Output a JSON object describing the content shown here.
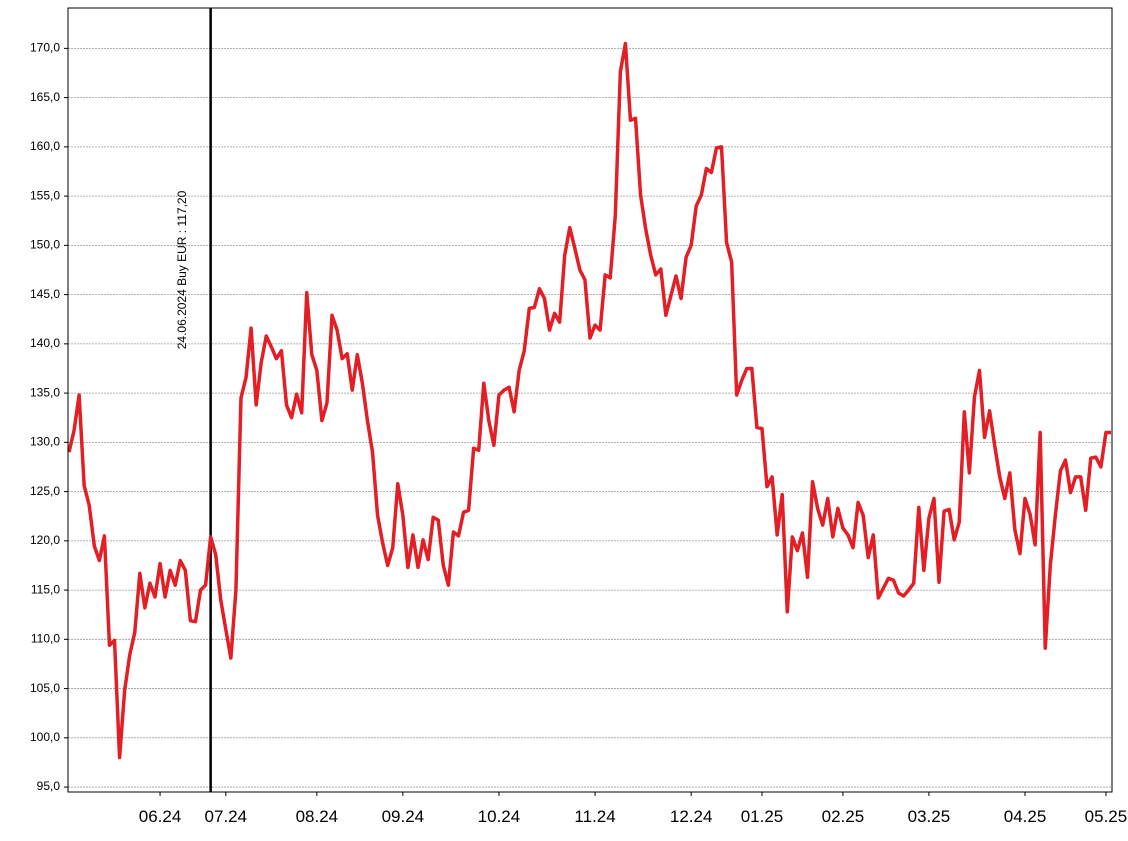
{
  "chart_data": {
    "type": "line",
    "annotation": "24.06.2024 Buy EUR : 117,20",
    "color": "#e31e24",
    "grid": true,
    "ylim": [
      94.5,
      174.1
    ],
    "yticks": [
      {
        "value": 95,
        "label": "95,0"
      },
      {
        "value": 100,
        "label": "100,0"
      },
      {
        "value": 105,
        "label": "105,0"
      },
      {
        "value": 110,
        "label": "110,0"
      },
      {
        "value": 115,
        "label": "115,0"
      },
      {
        "value": 120,
        "label": "120,0"
      },
      {
        "value": 125,
        "label": "125,0"
      },
      {
        "value": 130,
        "label": "130,0"
      },
      {
        "value": 135,
        "label": "135,0"
      },
      {
        "value": 140,
        "label": "140,0"
      },
      {
        "value": 145,
        "label": "145,0"
      },
      {
        "value": 150,
        "label": "150,0"
      },
      {
        "value": 155,
        "label": "155,0"
      },
      {
        "value": 160,
        "label": "160,0"
      },
      {
        "value": 165,
        "label": "165,0"
      },
      {
        "value": 170,
        "label": "170,0"
      }
    ],
    "categories": [
      null,
      null,
      null,
      null,
      null,
      null,
      null,
      null,
      null,
      null,
      null,
      null,
      null,
      null,
      null,
      null,
      null,
      null,
      "06.24",
      null,
      null,
      null,
      null,
      null,
      null,
      null,
      null,
      null,
      null,
      null,
      null,
      "07.24",
      null,
      null,
      null,
      null,
      null,
      null,
      null,
      null,
      null,
      null,
      null,
      null,
      null,
      null,
      null,
      null,
      null,
      "08.24",
      null,
      null,
      null,
      null,
      null,
      null,
      null,
      null,
      null,
      null,
      null,
      null,
      null,
      null,
      null,
      null,
      "09.24",
      null,
      null,
      null,
      null,
      null,
      null,
      null,
      null,
      null,
      null,
      null,
      null,
      null,
      null,
      null,
      null,
      null,
      null,
      "10.24",
      null,
      null,
      null,
      null,
      null,
      null,
      null,
      null,
      null,
      null,
      null,
      null,
      null,
      null,
      null,
      null,
      null,
      null,
      "11.24",
      null,
      null,
      null,
      null,
      null,
      null,
      null,
      null,
      null,
      null,
      null,
      null,
      null,
      null,
      null,
      null,
      null,
      null,
      "12.24",
      null,
      null,
      null,
      null,
      null,
      null,
      null,
      null,
      null,
      null,
      null,
      null,
      null,
      "01.25",
      null,
      null,
      null,
      null,
      null,
      null,
      null,
      null,
      null,
      null,
      null,
      null,
      null,
      null,
      null,
      "02.25",
      null,
      null,
      null,
      null,
      null,
      null,
      null,
      null,
      null,
      null,
      null,
      null,
      null,
      null,
      null,
      null,
      "03.25",
      null,
      null,
      null,
      null,
      null,
      null,
      null,
      null,
      null,
      null,
      null,
      null,
      null,
      null,
      null,
      null,
      null,
      null,
      "04.25",
      null,
      null,
      null,
      null,
      null,
      null,
      null,
      null,
      null,
      null,
      null,
      null,
      null,
      null,
      null,
      "05.25",
      null
    ],
    "values": [
      129.0,
      131.2,
      134.8,
      125.6,
      123.6,
      119.5,
      118.0,
      120.5,
      109.4,
      109.9,
      98.0,
      104.8,
      108.4,
      110.7,
      116.7,
      113.2,
      115.7,
      114.3,
      117.7,
      114.3,
      117.0,
      115.5,
      118.0,
      117.0,
      111.9,
      111.8,
      115.0,
      115.5,
      120.4,
      118.6,
      114.0,
      111.0,
      108.1,
      115.0,
      134.5,
      136.6,
      141.6,
      133.8,
      138.1,
      140.8,
      139.7,
      138.5,
      139.3,
      133.8,
      132.5,
      134.9,
      133.0,
      145.2,
      138.9,
      137.3,
      132.2,
      134.0,
      142.9,
      141.4,
      138.5,
      139.0,
      135.3,
      138.9,
      136.0,
      132.2,
      129.0,
      122.6,
      119.8,
      117.5,
      119.3,
      125.8,
      122.6,
      117.3,
      120.6,
      117.3,
      120.1,
      118.1,
      122.4,
      122.1,
      117.5,
      115.5,
      120.9,
      120.5,
      122.9,
      123.1,
      129.4,
      129.2,
      136.0,
      132.2,
      129.7,
      134.8,
      135.3,
      135.6,
      133.1,
      137.3,
      139.3,
      143.6,
      143.7,
      145.6,
      144.6,
      141.4,
      143.1,
      142.2,
      149.0,
      151.8,
      149.7,
      147.5,
      146.5,
      140.6,
      141.9,
      141.4,
      147.0,
      146.7,
      153.0,
      167.6,
      170.5,
      162.7,
      162.9,
      155.1,
      151.7,
      149.0,
      147.0,
      147.6,
      142.9,
      144.9,
      146.9,
      144.6,
      148.8,
      150.0,
      154.0,
      155.1,
      157.8,
      157.4,
      159.9,
      160.0,
      150.3,
      148.3,
      134.8,
      136.3,
      137.5,
      137.5,
      131.5,
      131.4,
      125.5,
      126.5,
      120.6,
      124.7,
      112.8,
      120.4,
      119.0,
      120.8,
      116.3,
      126.0,
      123.3,
      121.6,
      124.3,
      120.4,
      123.3,
      121.3,
      120.6,
      119.3,
      123.9,
      122.6,
      118.3,
      120.6,
      114.2,
      115.2,
      116.2,
      116.0,
      114.7,
      114.4,
      115.0,
      115.7,
      123.4,
      117.0,
      122.3,
      124.3,
      115.8,
      123.0,
      123.2,
      120.1,
      121.9,
      133.1,
      126.9,
      134.6,
      137.3,
      130.5,
      133.2,
      129.7,
      126.5,
      124.3,
      126.9,
      121.1,
      118.7,
      124.3,
      122.7,
      119.6,
      131.0,
      109.1,
      117.5,
      122.6,
      127.1,
      128.2,
      124.9,
      126.5,
      126.5,
      123.1,
      128.4,
      128.5,
      127.5,
      131.0,
      131.0
    ]
  }
}
